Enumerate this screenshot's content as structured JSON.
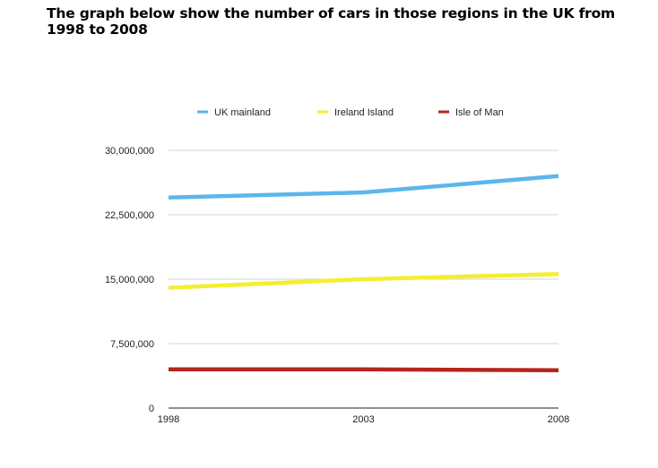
{
  "heading": "The graph below show the number of cars in those regions in the UK from 1998 to 2008",
  "chart_data": {
    "type": "line",
    "title": "The graph below show the number of cars in those regions in the UK from 1998 to 2008",
    "xlabel": "",
    "ylabel": "",
    "x": [
      "1998",
      "2003",
      "2008"
    ],
    "ylim": [
      0,
      30000000
    ],
    "yticks": [
      0,
      7500000,
      15000000,
      22500000,
      30000000
    ],
    "ytick_labels": [
      "0",
      "7,500,000",
      "15,000,000",
      "22,500,000",
      "30,000,000"
    ],
    "grid": true,
    "legend_position": "top",
    "series": [
      {
        "name": "UK mainland",
        "color": "#5bb6ec",
        "values": [
          24500000,
          25100000,
          27000000
        ]
      },
      {
        "name": "Ireland Island",
        "color": "#f5ee2e",
        "values": [
          14000000,
          15000000,
          15600000
        ]
      },
      {
        "name": "Isle of Man",
        "color": "#b5251d",
        "values": [
          4500000,
          4500000,
          4400000
        ]
      }
    ]
  }
}
